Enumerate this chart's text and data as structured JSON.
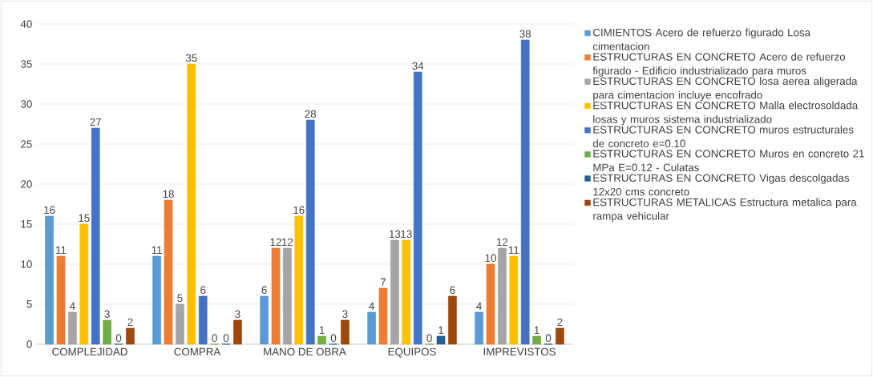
{
  "chart_data": {
    "type": "bar",
    "categories": [
      "COMPLEJIDAD",
      "COMPRA",
      "MANO DE OBRA",
      "EQUIPOS",
      "IMPREVISTOS"
    ],
    "series": [
      {
        "name": "CIMIENTOS Acero de refuerzo figurado Losa cimentacion",
        "color": "#5b9bd5",
        "values": [
          16,
          11,
          6,
          4,
          4
        ]
      },
      {
        "name": "ESTRUCTURAS EN CONCRETO Acero de refuerzo figurado - Edificio industrializado para muros",
        "color": "#ed7d31",
        "values": [
          11,
          18,
          12,
          7,
          10
        ]
      },
      {
        "name": "ESTRUCTURAS EN CONCRETO losa aerea aligerada para cimentacion incluye encofrado",
        "color": "#a5a5a5",
        "values": [
          4,
          5,
          12,
          13,
          12
        ]
      },
      {
        "name": "ESTRUCTURAS EN CONCRETO Malla electrosoldada losas y muros sistema industrializado",
        "color": "#ffc000",
        "values": [
          15,
          35,
          16,
          13,
          11
        ]
      },
      {
        "name": "ESTRUCTURAS EN CONCRETO muros estructurales de concreto e=0.10",
        "color": "#4472c4",
        "values": [
          27,
          6,
          28,
          34,
          38
        ]
      },
      {
        "name": "ESTRUCTURAS EN CONCRETO Muros en concreto 21 MPa E=0.12 -  Culatas",
        "color": "#70ad47",
        "values": [
          3,
          0,
          1,
          0,
          1
        ]
      },
      {
        "name": "ESTRUCTURAS EN CONCRETO Vigas descolgadas 12x20 cms concreto",
        "color": "#255e91",
        "values": [
          0,
          0,
          0,
          1,
          0
        ]
      },
      {
        "name": "ESTRUCTURAS METALICAS Estructura metalica para rampa vehicular",
        "color": "#9e480e",
        "values": [
          2,
          3,
          3,
          6,
          2
        ]
      }
    ],
    "ylim": [
      0,
      40
    ],
    "yticks": [
      0,
      5,
      10,
      15,
      20,
      25,
      30,
      35,
      40
    ],
    "grid": "y",
    "legend": "right",
    "data_labels": true
  }
}
